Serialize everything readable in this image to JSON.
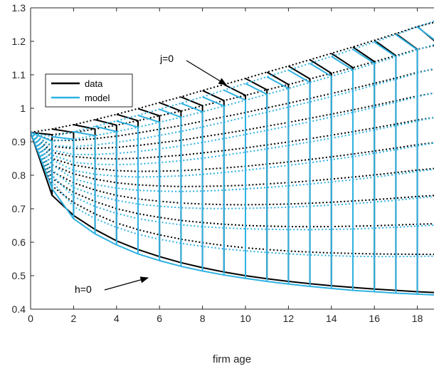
{
  "chart_data": {
    "type": "line",
    "xlabel": "firm age",
    "ylabel": "",
    "xlim": [
      0,
      19
    ],
    "ylim": [
      0.4,
      1.3
    ],
    "x_ticks": [
      "0",
      "2",
      "4",
      "6",
      "8",
      "10",
      "12",
      "14",
      "16",
      "18"
    ],
    "y_ticks": [
      "0.4",
      "0.5",
      "0.6",
      "0.7",
      "0.8",
      "0.9",
      "1",
      "1.1",
      "1.2",
      "1.3"
    ],
    "grid": false,
    "legend": {
      "position": "upper-left",
      "entries": [
        {
          "label": "data",
          "color": "#000000"
        },
        {
          "label": "model",
          "color": "#2fb1e2"
        }
      ]
    },
    "series": [
      {
        "name": "data",
        "color": "#000000",
        "upper_j0": [
          0.928,
          0.938,
          0.951,
          0.966,
          0.982,
          0.999,
          1.017,
          1.034,
          1.053,
          1.071,
          1.089,
          1.108,
          1.126,
          1.145,
          1.164,
          1.183,
          1.203,
          1.223,
          1.244,
          1.26
        ],
        "lower_h0": [
          0.928,
          0.74,
          0.68,
          0.638,
          0.604,
          0.578,
          0.557,
          0.539,
          0.524,
          0.511,
          0.5,
          0.491,
          0.483,
          0.476,
          0.47,
          0.465,
          0.46,
          0.456,
          0.452,
          0.449
        ]
      },
      {
        "name": "model",
        "color": "#2fb1e2",
        "upper_j0": [
          0.928,
          0.915,
          0.93,
          0.946,
          0.962,
          0.979,
          0.997,
          1.015,
          1.034,
          1.054,
          1.074,
          1.094,
          1.114,
          1.134,
          1.155,
          1.176,
          1.198,
          1.22,
          1.243,
          1.265
        ],
        "lower_h0": [
          0.928,
          0.76,
          0.67,
          0.625,
          0.592,
          0.565,
          0.545,
          0.528,
          0.514,
          0.502,
          0.492,
          0.483,
          0.475,
          0.468,
          0.462,
          0.456,
          0.452,
          0.448,
          0.445,
          0.442
        ]
      }
    ],
    "inner_curves": 9,
    "annotations": [
      {
        "text": "j=0",
        "target": [
          9,
          1.07
        ]
      },
      {
        "text": "h=0",
        "target": [
          5.5,
          0.55
        ]
      }
    ]
  }
}
